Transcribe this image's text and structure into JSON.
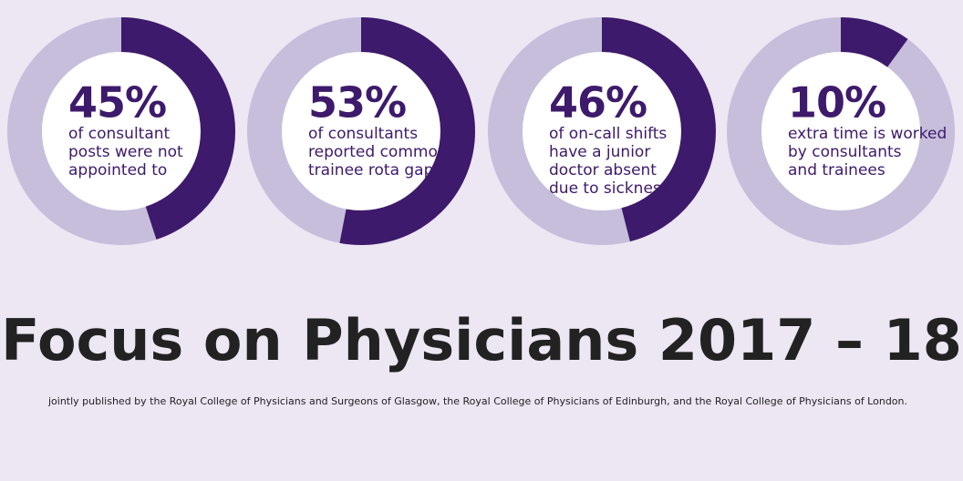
{
  "chart_data": [
    {
      "type": "donut",
      "values": [
        45
      ],
      "value_labels": [
        "45%"
      ],
      "color": "#3d1a6b",
      "track_color": "#c6bedb",
      "caption": [
        "of consultant",
        "posts were not",
        "appointed to"
      ]
    },
    {
      "type": "donut",
      "values": [
        53
      ],
      "value_labels": [
        "53%"
      ],
      "color": "#3d1a6b",
      "track_color": "#c6bedb",
      "caption": [
        "of consultants",
        "reported common",
        "trainee rota gaps"
      ]
    },
    {
      "type": "donut",
      "values": [
        46
      ],
      "value_labels": [
        "46%"
      ],
      "color": "#3d1a6b",
      "track_color": "#c6bedb",
      "caption": [
        "of on-call shifts",
        "have a junior",
        "doctor absent",
        "due to sickness"
      ]
    },
    {
      "type": "donut",
      "values": [
        10
      ],
      "value_labels": [
        "10%"
      ],
      "color": "#3d1a6b",
      "track_color": "#c6bedb",
      "caption": [
        "extra time is worked",
        "by consultants",
        "and trainees"
      ]
    }
  ],
  "title": "Focus on Physicians 2017 – 18",
  "subtitle": "jointly published by the Royal College of Physicians and Surgeons of Glasgow,  the Royal College of Physicians of Edinburgh, and the Royal College of Physicians of London."
}
